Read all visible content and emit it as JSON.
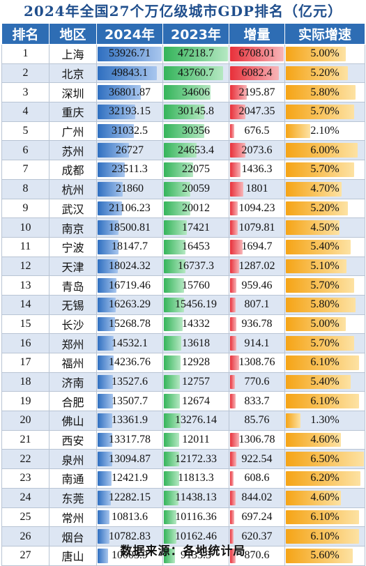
{
  "title": "2024年全国27个万亿级城市GDP排名（亿元）",
  "footer": "数据来源：各地统计局",
  "chart_data": {
    "type": "table",
    "title": "2024年全国27个万亿级城市GDP排名（亿元）",
    "columns": [
      "排名",
      "地区",
      "2024年",
      "2023年",
      "增量",
      "实际增速"
    ],
    "rows": [
      {
        "rank": "1",
        "city": "上海",
        "gdp2024": "53926.71",
        "gdp2023": "47218.7",
        "increase": "6708.01",
        "growth": "5.00%"
      },
      {
        "rank": "2",
        "city": "北京",
        "gdp2024": "49843.1",
        "gdp2023": "43760.7",
        "increase": "6082.4",
        "growth": "5.20%"
      },
      {
        "rank": "3",
        "city": "深圳",
        "gdp2024": "36801.87",
        "gdp2023": "34606",
        "increase": "2195.87",
        "growth": "5.80%"
      },
      {
        "rank": "4",
        "city": "重庆",
        "gdp2024": "32193.15",
        "gdp2023": "30145.8",
        "increase": "2047.35",
        "growth": "5.70%"
      },
      {
        "rank": "5",
        "city": "广州",
        "gdp2024": "31032.5",
        "gdp2023": "30356",
        "increase": "676.5",
        "growth": "2.10%"
      },
      {
        "rank": "6",
        "city": "苏州",
        "gdp2024": "26727",
        "gdp2023": "24653.4",
        "increase": "2073.6",
        "growth": "6.00%"
      },
      {
        "rank": "7",
        "city": "成都",
        "gdp2024": "23511.3",
        "gdp2023": "22075",
        "increase": "1436.3",
        "growth": "5.70%"
      },
      {
        "rank": "8",
        "city": "杭州",
        "gdp2024": "21860",
        "gdp2023": "20059",
        "increase": "1801",
        "growth": "4.70%"
      },
      {
        "rank": "9",
        "city": "武汉",
        "gdp2024": "21106.23",
        "gdp2023": "20012",
        "increase": "1094.23",
        "growth": "5.20%"
      },
      {
        "rank": "10",
        "city": "南京",
        "gdp2024": "18500.81",
        "gdp2023": "17421",
        "increase": "1079.81",
        "growth": "4.50%"
      },
      {
        "rank": "11",
        "city": "宁波",
        "gdp2024": "18147.7",
        "gdp2023": "16453",
        "increase": "1694.7",
        "growth": "5.40%"
      },
      {
        "rank": "12",
        "city": "天津",
        "gdp2024": "18024.32",
        "gdp2023": "16737.3",
        "increase": "1287.02",
        "growth": "5.10%"
      },
      {
        "rank": "13",
        "city": "青岛",
        "gdp2024": "16719.46",
        "gdp2023": "15760",
        "increase": "959.46",
        "growth": "5.70%"
      },
      {
        "rank": "14",
        "city": "无锡",
        "gdp2024": "16263.29",
        "gdp2023": "15456.19",
        "increase": "807.1",
        "growth": "5.80%"
      },
      {
        "rank": "15",
        "city": "长沙",
        "gdp2024": "15268.78",
        "gdp2023": "14332",
        "increase": "936.78",
        "growth": "5.00%"
      },
      {
        "rank": "16",
        "city": "郑州",
        "gdp2024": "14532.1",
        "gdp2023": "13618",
        "increase": "914.1",
        "growth": "5.70%"
      },
      {
        "rank": "17",
        "city": "福州",
        "gdp2024": "14236.76",
        "gdp2023": "12928",
        "increase": "1308.76",
        "growth": "6.10%"
      },
      {
        "rank": "18",
        "city": "济南",
        "gdp2024": "13527.6",
        "gdp2023": "12757",
        "increase": "770.6",
        "growth": "5.40%"
      },
      {
        "rank": "19",
        "city": "合肥",
        "gdp2024": "13507.7",
        "gdp2023": "12674",
        "increase": "833.7",
        "growth": "6.10%"
      },
      {
        "rank": "20",
        "city": "佛山",
        "gdp2024": "13361.9",
        "gdp2023": "13276.14",
        "increase": "85.76",
        "growth": "1.30%"
      },
      {
        "rank": "21",
        "city": "西安",
        "gdp2024": "13317.78",
        "gdp2023": "12011",
        "increase": "1306.78",
        "growth": "4.60%"
      },
      {
        "rank": "22",
        "city": "泉州",
        "gdp2024": "13094.87",
        "gdp2023": "12172.33",
        "increase": "922.54",
        "growth": "6.50%"
      },
      {
        "rank": "23",
        "city": "南通",
        "gdp2024": "12421.9",
        "gdp2023": "11813.3",
        "increase": "608.6",
        "growth": "6.20%"
      },
      {
        "rank": "24",
        "city": "东莞",
        "gdp2024": "12282.15",
        "gdp2023": "11438.13",
        "increase": "844.02",
        "growth": "4.60%"
      },
      {
        "rank": "25",
        "city": "常州",
        "gdp2024": "10813.6",
        "gdp2023": "10116.36",
        "increase": "697.24",
        "growth": "6.10%"
      },
      {
        "rank": "26",
        "city": "烟台",
        "gdp2024": "10782.83",
        "gdp2023": "10162.46",
        "increase": "620.37",
        "growth": "6.10%"
      },
      {
        "rank": "27",
        "city": "唐山",
        "gdp2024": "10003.9",
        "gdp2023": "9133.3",
        "increase": "870.6",
        "growth": "5.60%"
      }
    ]
  }
}
